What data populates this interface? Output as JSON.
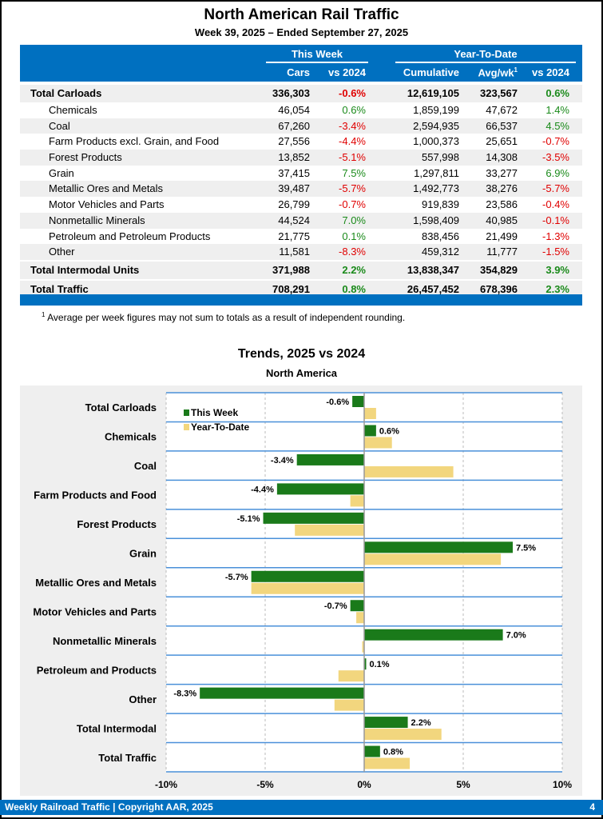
{
  "title": "North American Rail Traffic",
  "subtitle": "Week 39, 2025 – Ended September 27, 2025",
  "table": {
    "group_this_week": "This Week",
    "group_ytd": "Year-To-Date",
    "columns": [
      "Cars",
      "vs 2024",
      "Cumulative",
      "Avg/wk",
      "vs 2024"
    ],
    "avg_sup": "1",
    "rows": [
      {
        "label": "Total Carloads",
        "cars": "336,303",
        "vs": "-0.6%",
        "cum": "12,619,105",
        "avg": "323,567",
        "ytd": "0.6%",
        "total": true
      },
      {
        "label": "Chemicals",
        "cars": "46,054",
        "vs": "0.6%",
        "cum": "1,859,199",
        "avg": "47,672",
        "ytd": "1.4%"
      },
      {
        "label": "Coal",
        "cars": "67,260",
        "vs": "-3.4%",
        "cum": "2,594,935",
        "avg": "66,537",
        "ytd": "4.5%"
      },
      {
        "label": "Farm Products excl. Grain, and Food",
        "cars": "27,556",
        "vs": "-4.4%",
        "cum": "1,000,373",
        "avg": "25,651",
        "ytd": "-0.7%"
      },
      {
        "label": "Forest Products",
        "cars": "13,852",
        "vs": "-5.1%",
        "cum": "557,998",
        "avg": "14,308",
        "ytd": "-3.5%"
      },
      {
        "label": "Grain",
        "cars": "37,415",
        "vs": "7.5%",
        "cum": "1,297,811",
        "avg": "33,277",
        "ytd": "6.9%"
      },
      {
        "label": "Metallic Ores and Metals",
        "cars": "39,487",
        "vs": "-5.7%",
        "cum": "1,492,773",
        "avg": "38,276",
        "ytd": "-5.7%"
      },
      {
        "label": "Motor Vehicles and Parts",
        "cars": "26,799",
        "vs": "-0.7%",
        "cum": "919,839",
        "avg": "23,586",
        "ytd": "-0.4%"
      },
      {
        "label": "Nonmetallic Minerals",
        "cars": "44,524",
        "vs": "7.0%",
        "cum": "1,598,409",
        "avg": "40,985",
        "ytd": "-0.1%"
      },
      {
        "label": "Petroleum and Petroleum Products",
        "cars": "21,775",
        "vs": "0.1%",
        "cum": "838,456",
        "avg": "21,499",
        "ytd": "-1.3%"
      },
      {
        "label": "Other",
        "cars": "11,581",
        "vs": "-8.3%",
        "cum": "459,312",
        "avg": "11,777",
        "ytd": "-1.5%"
      },
      {
        "label": "Total Intermodal Units",
        "cars": "371,988",
        "vs": "2.2%",
        "cum": "13,838,347",
        "avg": "354,829",
        "ytd": "3.9%",
        "total": true
      },
      {
        "label": "Total Traffic",
        "cars": "708,291",
        "vs": "0.8%",
        "cum": "26,457,452",
        "avg": "678,396",
        "ytd": "2.3%",
        "total": true
      }
    ]
  },
  "footnote_sup": "1",
  "footnote": "Average per week figures may not sum to totals as a result of independent rounding.",
  "chart_data": {
    "type": "bar",
    "orientation": "horizontal",
    "title": "Trends, 2025 vs 2024",
    "subtitle": "North America",
    "categories": [
      "Total Carloads",
      "Chemicals",
      "Coal",
      "Farm Products and Food",
      "Forest Products",
      "Grain",
      "Metallic Ores and Metals",
      "Motor Vehicles and Parts",
      "Nonmetallic Minerals",
      "Petroleum and Products",
      "Other",
      "Total Intermodal",
      "Total Traffic"
    ],
    "series": [
      {
        "name": "This Week",
        "color": "#1a7a1a",
        "values": [
          -0.6,
          0.6,
          -3.4,
          -4.4,
          -5.1,
          7.5,
          -5.7,
          -0.7,
          7.0,
          0.1,
          -8.3,
          2.2,
          0.8
        ]
      },
      {
        "name": "Year-To-Date",
        "color": "#f2d67e",
        "values": [
          0.6,
          1.4,
          4.5,
          -0.7,
          -3.5,
          6.9,
          -5.7,
          -0.4,
          -0.1,
          -1.3,
          -1.5,
          3.9,
          2.3
        ]
      }
    ],
    "xlim": [
      -10,
      10
    ],
    "xticks": [
      "-10%",
      "-5%",
      "0%",
      "5%",
      "10%"
    ],
    "grid": true,
    "legend": "top-left"
  },
  "footer": {
    "text": "Weekly Railroad Traffic | Copyright AAR, 2025",
    "page": "4"
  },
  "colors": {
    "blue": "#0070c0",
    "negative": "#e00000",
    "positive": "#1a8a1a"
  }
}
